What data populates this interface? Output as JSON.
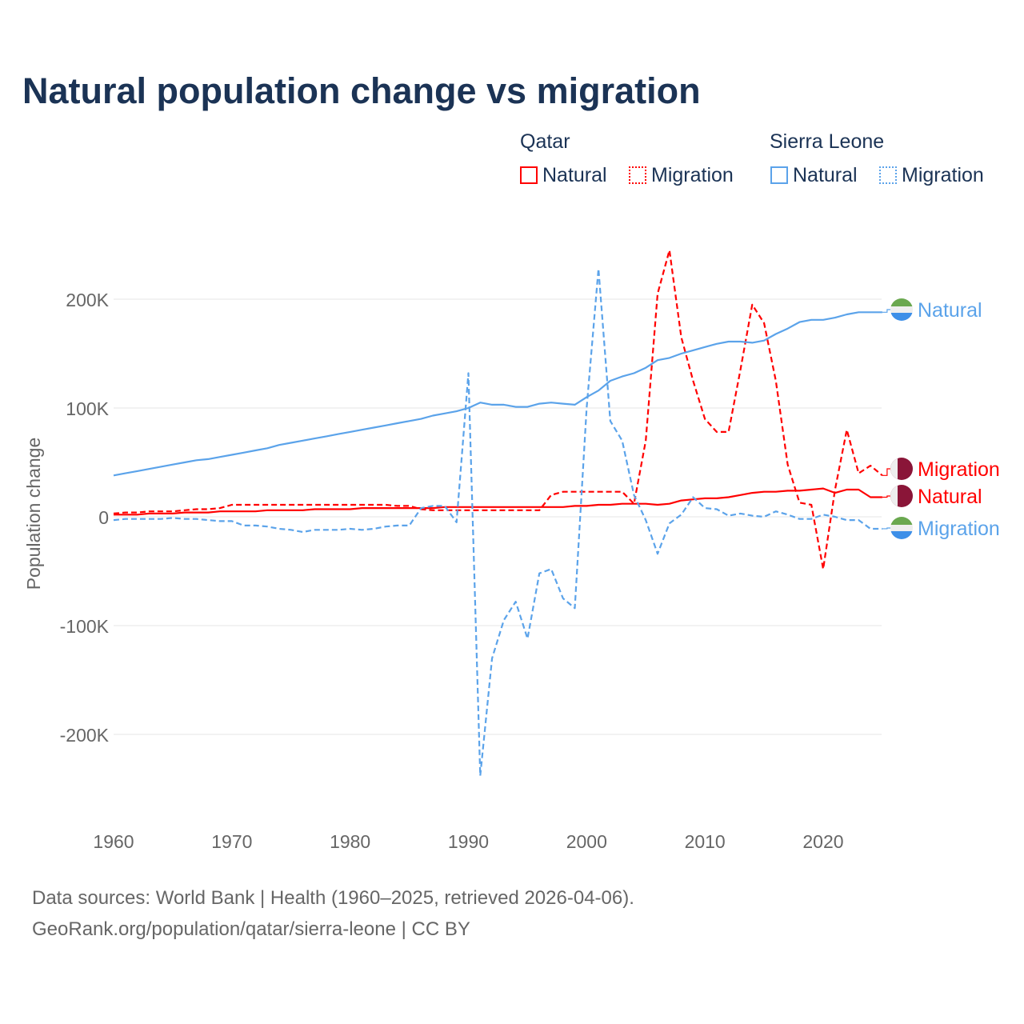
{
  "title": "Natural population change vs migration",
  "legend": {
    "groups": [
      {
        "name": "Qatar",
        "color": "#ff0000",
        "items": [
          "Natural",
          "Migration"
        ]
      },
      {
        "name": "Sierra Leone",
        "color": "#5ba3ea",
        "items": [
          "Natural",
          "Migration"
        ]
      }
    ]
  },
  "footer": {
    "line1": "Data sources: World Bank | Health (1960–2025, retrieved 2026-04-06).",
    "line2": "GeoRank.org/population/qatar/sierra-leone | CC BY"
  },
  "chart_data": {
    "type": "line",
    "title": "Natural population change vs migration",
    "ylabel": "Population change",
    "xlabel": "",
    "xlim": [
      1960,
      2025
    ],
    "ylim": [
      -250000,
      250000
    ],
    "x_ticks": [
      "1960",
      "1970",
      "1980",
      "1990",
      "2000",
      "2010",
      "2020"
    ],
    "y_ticks": [
      {
        "v": 200000,
        "label": "200K"
      },
      {
        "v": 100000,
        "label": "100K"
      },
      {
        "v": 0,
        "label": "0"
      },
      {
        "v": -100000,
        "label": "-100K"
      },
      {
        "v": -200000,
        "label": "-200K"
      }
    ],
    "grid": true,
    "start_year": 1960,
    "units": "thousands",
    "series": [
      {
        "name": "Sierra Leone Natural",
        "label": "Natural",
        "country": "Sierra Leone",
        "color": "#5ba3ea",
        "dashed": false,
        "values": [
          38,
          40,
          42,
          44,
          46,
          48,
          50,
          52,
          53,
          55,
          57,
          59,
          61,
          63,
          66,
          68,
          70,
          72,
          74,
          76,
          78,
          80,
          82,
          84,
          86,
          88,
          90,
          93,
          95,
          97,
          100,
          105,
          103,
          103,
          101,
          101,
          104,
          105,
          104,
          103,
          110,
          116,
          125,
          129,
          132,
          137,
          144,
          146,
          150,
          153,
          156,
          159,
          161,
          161,
          160,
          162,
          168,
          173,
          179,
          181,
          181,
          183,
          186,
          188,
          188,
          188
        ]
      },
      {
        "name": "Sierra Leone Migration",
        "label": "Migration",
        "country": "Sierra Leone",
        "color": "#5ba3ea",
        "dashed": true,
        "values": [
          -3,
          -2,
          -2,
          -2,
          -2,
          -1,
          -2,
          -2,
          -3,
          -4,
          -4,
          -8,
          -8,
          -9,
          -11,
          -12,
          -14,
          -12,
          -12,
          -12,
          -11,
          -12,
          -11,
          -9,
          -8,
          -8,
          8,
          10,
          10,
          -5,
          132,
          -238,
          -130,
          -95,
          -78,
          -112,
          -52,
          -48,
          -75,
          -84,
          100,
          228,
          88,
          70,
          20,
          -3,
          -34,
          -6,
          2,
          18,
          8,
          7,
          1,
          3,
          1,
          0,
          5,
          2,
          -2,
          -2,
          2,
          0,
          -3,
          -3,
          -11,
          -11
        ]
      },
      {
        "name": "Qatar Natural",
        "label": "Natural",
        "country": "Qatar",
        "color": "#ff0000",
        "dashed": false,
        "values": [
          2,
          2,
          2,
          3,
          3,
          3,
          4,
          4,
          4,
          5,
          5,
          5,
          5,
          6,
          6,
          6,
          6,
          7,
          7,
          7,
          7,
          8,
          8,
          8,
          8,
          8,
          8,
          8,
          9,
          9,
          9,
          9,
          9,
          9,
          9,
          9,
          9,
          9,
          9,
          10,
          10,
          11,
          11,
          12,
          12,
          12,
          11,
          12,
          15,
          16,
          17,
          17,
          18,
          20,
          22,
          23,
          23,
          24,
          24,
          25,
          26,
          22,
          25,
          25,
          18,
          18
        ]
      },
      {
        "name": "Qatar Migration",
        "label": "Migration",
        "country": "Qatar",
        "color": "#ff0000",
        "dashed": true,
        "values": [
          3,
          4,
          4,
          5,
          5,
          5,
          6,
          7,
          7,
          8,
          11,
          11,
          11,
          11,
          11,
          11,
          11,
          11,
          11,
          11,
          11,
          11,
          11,
          11,
          10,
          10,
          7,
          6,
          6,
          6,
          6,
          6,
          6,
          6,
          6,
          6,
          6,
          20,
          23,
          23,
          23,
          23,
          23,
          23,
          12,
          70,
          205,
          245,
          165,
          125,
          90,
          78,
          78,
          135,
          195,
          178,
          125,
          48,
          13,
          11,
          -48,
          25,
          80,
          40,
          47,
          38
        ]
      }
    ],
    "end_labels": [
      {
        "text": "Natural",
        "series": 0,
        "flag": "sierra-leone"
      },
      {
        "text": "Migration",
        "series": 3,
        "flag": "qatar"
      },
      {
        "text": "Natural",
        "series": 2,
        "flag": "qatar"
      },
      {
        "text": "Migration",
        "series": 1,
        "flag": "sierra-leone"
      }
    ]
  }
}
